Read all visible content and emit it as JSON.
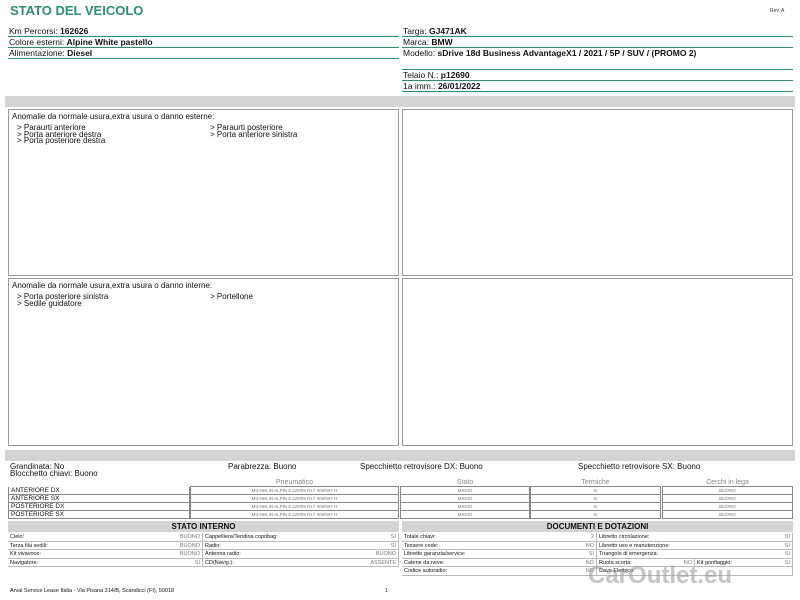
{
  "header": {
    "title": "STATO DEL VEICOLO",
    "revision": "Rev. A"
  },
  "vehicle_left": [
    {
      "label": "Km Percorsi:",
      "value": "162626"
    },
    {
      "label": "Colore esterni:",
      "value": "Alpine White pastello"
    },
    {
      "label": "Alimentazione:",
      "value": "Diesel"
    }
  ],
  "vehicle_right": [
    {
      "label": "Targa:",
      "value": "GJ471AK"
    },
    {
      "label": "Marca:",
      "value": "BMW"
    },
    {
      "label": "Modello:",
      "value": "sDrive 18d Business AdvantageX1 / 2021 / 5P / SUV / (PROMO 2)"
    },
    {
      "label": "Telaio N.:",
      "value": "p12690"
    },
    {
      "label": "1a imm.:",
      "value": "26/01/2022"
    }
  ],
  "external_damage": {
    "heading": "Anomalie da normale usura,extra usura o danno esterne:",
    "items": [
      "> Paraurti anteriore",
      "> Paraurti posteriore",
      "> Porta anteriore destra",
      "> Porta anteriore sinistra",
      "> Porta posteriore destra"
    ]
  },
  "internal_damage": {
    "heading": "Anomalie da normale usura,extra usura o danno interne:",
    "items": [
      "> Porta posteriore sinistra",
      "> Portellone",
      "> Sedile guidatore"
    ]
  },
  "conditions": [
    "Grandinata: No",
    "Parabrezza: Buono",
    "Specchietto retrovisore DX: Buono",
    "Specchietto retrovisore SX: Buono",
    "Blocchetto chiavi: Buono"
  ],
  "tyres": {
    "headers": [
      "Pneumatico",
      "Stato",
      "Termiche",
      "Cerchi in lega"
    ],
    "rows": [
      [
        "ANTERIORE DX",
        "MICHELIN ALPIN 5 225/55 R17 000/097 H",
        "MEDIO",
        "SI",
        "BUONO"
      ],
      [
        "ANTERIORE SX",
        "MICHELIN ALPIN 5 225/55 R17 000/097 H",
        "MEDIO",
        "SI",
        "BUONO"
      ],
      [
        "POSTERIORE DX",
        "MICHELIN ALPIN 5 225/55 R17 000/097 H",
        "MEDIO",
        "SI",
        "BUONO"
      ],
      [
        "POSTERIORE SX",
        "MICHELIN ALPIN 5 225/55 R17 000/097 H",
        "MEDIO",
        "SI",
        "BUONO"
      ]
    ]
  },
  "interior": {
    "title": "STATO INTERNO",
    "rows": [
      [
        "Cielo:",
        "BUONO",
        "Cappelliera/Tendina copribag:",
        "SI"
      ],
      [
        "Terza fila sedili:",
        "BUONO",
        "Radio:",
        "SI"
      ],
      [
        "Kit vivavoce:",
        "BUONO",
        "Antenna radio:",
        "BUONO"
      ],
      [
        "Navigatore:",
        "SI",
        "CD(Navig.):",
        "ASSENTE"
      ]
    ]
  },
  "documents": {
    "title": "DOCUMENTI E DOTAZIONI",
    "rows": [
      [
        "Totale chiavi:",
        "2",
        "Libretto circolazione:",
        "SI"
      ],
      [
        "Tessere code:",
        "NO",
        "Libretto uso e manutenzione:",
        "SI"
      ],
      [
        "Libretto garanzia/service:",
        "SI",
        "Triangolo di emergenza:",
        "SI"
      ],
      [
        "Catene da neve:",
        "NO",
        "Ruota scorta:",
        "NO",
        "Kit gonfiaggio:",
        "SI"
      ],
      [
        "Codice autoradio:",
        "NO",
        "Cavo Elettrico:"
      ]
    ]
  },
  "footer": {
    "address": "Arval Service Lease Italia - Via Pisana 314/B, Scandicci (FI), 50018",
    "page": "1"
  },
  "watermark": "CarOutlet.eu"
}
